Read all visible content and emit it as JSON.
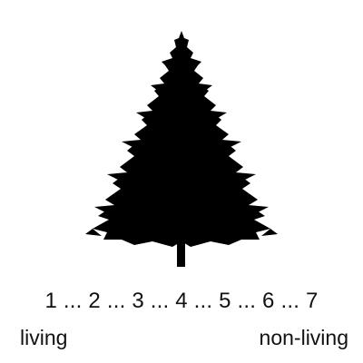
{
  "scale": {
    "points": [
      "1",
      "2",
      "3",
      "4",
      "5",
      "6",
      "7"
    ],
    "separator": " ... "
  },
  "anchors": {
    "left": "living",
    "right": "non-living"
  },
  "image": {
    "icon": "pine-tree-silhouette-icon",
    "fill_color": "#000000"
  }
}
